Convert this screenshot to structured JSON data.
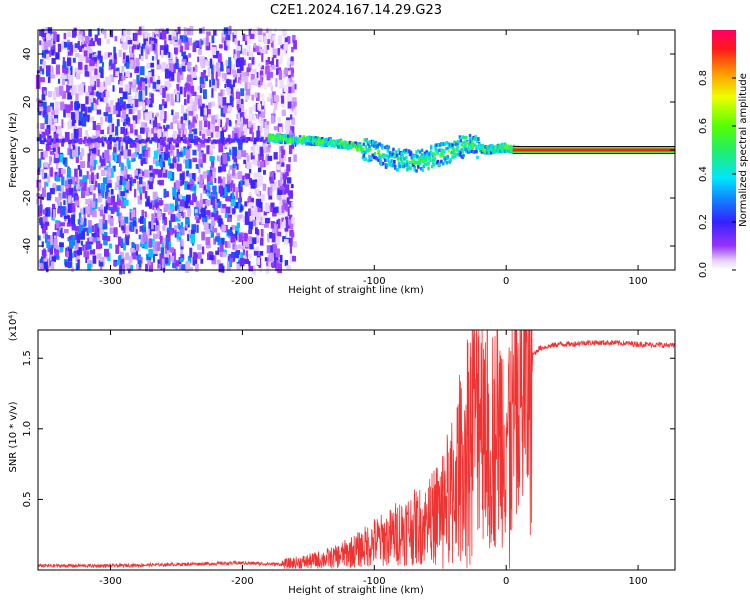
{
  "title": "C2E1.2024.167.14.29.G23",
  "colorbar": {
    "label": "Normalized spectral amplitude",
    "ticks": [
      0.0,
      0.2,
      0.4,
      0.6,
      0.8
    ],
    "tick_labels": [
      "0.0",
      "0.2",
      "0.4",
      "0.6",
      "0.8"
    ],
    "range": [
      0,
      1
    ]
  },
  "chart_data": [
    {
      "type": "heatmap",
      "title": "C2E1.2024.167.14.29.G23",
      "xlabel": "Height of straight line (km)",
      "ylabel": "Frequency (Hz)",
      "xlim": [
        -355,
        128
      ],
      "ylim": [
        -50,
        50
      ],
      "xticks": [
        -300,
        -200,
        -100,
        0,
        100
      ],
      "xtick_labels": [
        "-300",
        "-200",
        "-100",
        "0",
        "100"
      ],
      "yticks": [
        -40,
        -20,
        0,
        20,
        40
      ],
      "ytick_labels": [
        "-40",
        "-20",
        "0",
        "20",
        "40"
      ],
      "colormap": "rainbow (white-purple-blue-cyan-green-yellow-red-magenta)",
      "features": {
        "noise_band": {
          "x_range": [
            -355,
            -170
          ],
          "freq_range": [
            -50,
            50
          ],
          "amplitude": 0.1
        },
        "carrier_line_4hz": {
          "x_range": [
            -355,
            -180
          ],
          "freq": 4,
          "amplitude": 0.2
        },
        "signal_track": [
          {
            "x": -180,
            "freq": 5
          },
          {
            "x": -150,
            "freq": 4
          },
          {
            "x": -130,
            "freq": 3
          },
          {
            "x": -110,
            "freq": 1
          },
          {
            "x": -90,
            "freq": -3
          },
          {
            "x": -70,
            "freq": -5
          },
          {
            "x": -50,
            "freq": -2
          },
          {
            "x": -30,
            "freq": 2
          },
          {
            "x": -15,
            "freq": 0
          },
          {
            "x": 0,
            "freq": 1
          },
          {
            "x": 10,
            "freq": 0
          }
        ],
        "steady_line": {
          "x_range": [
            5,
            128
          ],
          "freq": 0,
          "amplitude": 0.85
        }
      }
    },
    {
      "type": "line",
      "xlabel": "Height of straight line (km)",
      "ylabel": "SNR (10 * v/v)",
      "y_scale_label": "(x10⁴)",
      "xlim": [
        -355,
        128
      ],
      "ylim": [
        0,
        1.7
      ],
      "xticks": [
        -300,
        -200,
        -100,
        0,
        100
      ],
      "xtick_labels": [
        "-300",
        "-200",
        "-100",
        "0",
        "100"
      ],
      "yticks": [
        0.5,
        1.0,
        1.5
      ],
      "ytick_labels": [
        "0.5",
        "1.0",
        "1.5"
      ],
      "color": "#ee3333",
      "series": [
        {
          "x": [
            -355,
            -300,
            -250,
            -200,
            -170,
            -150,
            -130,
            -120,
            -110,
            -100,
            -90,
            -80,
            -70,
            -60,
            -50,
            -40,
            -30,
            -25,
            -20,
            -15,
            -10,
            -5,
            0,
            5,
            10,
            15,
            20,
            25,
            30,
            40,
            50,
            60,
            80,
            100,
            128
          ],
          "y": [
            0.03,
            0.03,
            0.04,
            0.05,
            0.04,
            0.06,
            0.09,
            0.12,
            0.15,
            0.2,
            0.22,
            0.28,
            0.3,
            0.33,
            0.45,
            0.6,
            0.95,
            1.1,
            1.3,
            1.2,
            0.95,
            1.0,
            1.05,
            1.0,
            1.2,
            1.4,
            1.52,
            1.57,
            1.58,
            1.6,
            1.6,
            1.61,
            1.61,
            1.6,
            1.59
          ]
        }
      ]
    }
  ]
}
